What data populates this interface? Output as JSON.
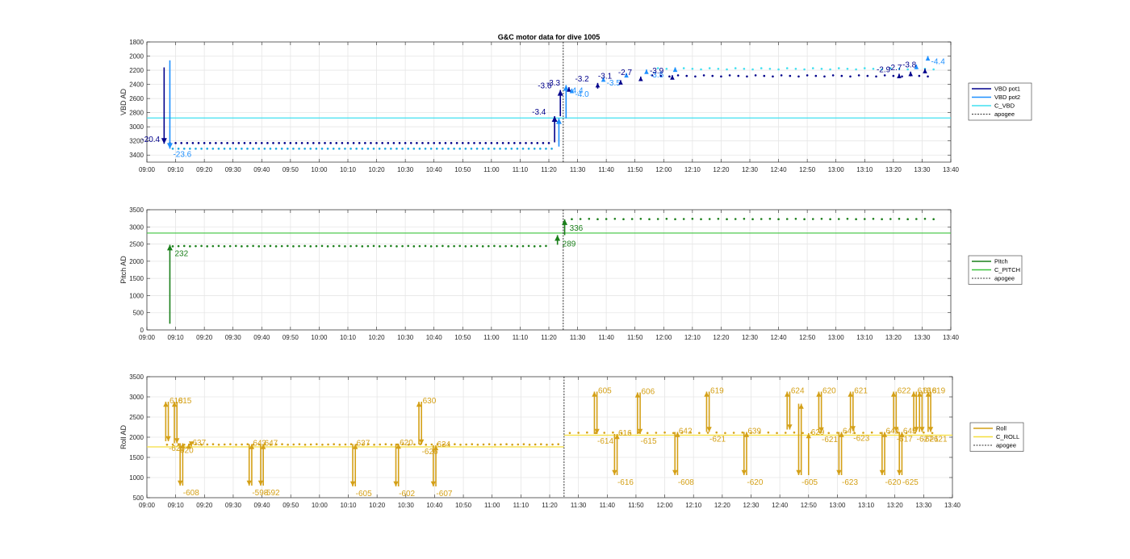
{
  "title": "G&C motor data for dive 1005",
  "colors": {
    "vbd_pot1": "#00008b",
    "vbd_pot2": "#1e90ff",
    "c_vbd": "#40e0f0",
    "vbd_dots1": "#00008b",
    "vbd_dots2": "#1ea7e0",
    "pitch": "#1a7f1a",
    "c_pitch": "#3cc43c",
    "roll": "#d4a017",
    "c_roll": "#f5de3c",
    "apogee": "#333333",
    "grid": "#e6e6e6",
    "axis": "#262626"
  },
  "chart_data": [
    {
      "type": "line",
      "name": "vbd",
      "ylabel": "VBD AD",
      "xlim": [
        "09:00",
        "13:40"
      ],
      "ylim": [
        1800,
        3500
      ],
      "y_reversed": true,
      "xticks": [
        "09:00",
        "09:10",
        "09:20",
        "09:30",
        "09:40",
        "09:50",
        "10:00",
        "10:10",
        "10:20",
        "10:30",
        "10:40",
        "10:50",
        "11:00",
        "11:10",
        "11:20",
        "11:30",
        "11:40",
        "11:50",
        "12:00",
        "12:10",
        "12:20",
        "12:30",
        "12:40",
        "12:50",
        "13:00",
        "13:10",
        "13:20",
        "13:30",
        "13:40"
      ],
      "yticks": [
        "1800",
        "2000",
        "2200",
        "2400",
        "2600",
        "2800",
        "3000",
        "3200",
        "3400"
      ],
      "grid": true,
      "apogee_x": "11:25",
      "hlines": [
        {
          "series": "C_VBD",
          "y": 2875
        }
      ],
      "legend": [
        "VBD pot1",
        "VBD pot2",
        "C_VBD",
        "apogee"
      ],
      "legend_placement": "outside-right",
      "arrows": [
        {
          "x": "09:06",
          "y1": 2160,
          "y2": 3240,
          "series": "pot1",
          "label": "-20.4"
        },
        {
          "x": "09:08",
          "y1": 2060,
          "y2": 3310,
          "series": "pot2",
          "label": "-23.6"
        },
        {
          "x": "11:22",
          "y1": 3220,
          "y2": 2850,
          "series": "pot1",
          "label": "-3.4"
        },
        {
          "x": "11:23.5",
          "y1": 3280,
          "y2": 2880,
          "series": "pot2",
          "label": ""
        },
        {
          "x": "11:24",
          "y1": 2850,
          "y2": 2480,
          "series": "pot1",
          "label": "-3.6"
        },
        {
          "x": "11:26",
          "y1": 2880,
          "y2": 2410,
          "series": "pot2",
          "label": "-4.4"
        },
        {
          "x": "11:27",
          "y1": 2460,
          "y2": 2440,
          "series": "pot1",
          "label": "-3.3"
        },
        {
          "x": "11:28",
          "y1": 2500,
          "y2": 2460,
          "series": "pot2",
          "label": "-4.0"
        },
        {
          "x": "11:37",
          "y1": 2460,
          "y2": 2380,
          "series": "pot1",
          "label": "-3.2"
        },
        {
          "x": "11:39",
          "y1": 2360,
          "y2": 2300,
          "series": "pot2",
          "label": "-3.5"
        },
        {
          "x": "11:45",
          "y1": 2390,
          "y2": 2340,
          "series": "pot1",
          "label": "-3.1"
        },
        {
          "x": "11:47",
          "y1": 2290,
          "y2": 2240,
          "series": "pot2",
          "label": ""
        },
        {
          "x": "11:52",
          "y1": 2340,
          "y2": 2290,
          "series": "pot1",
          "label": "-2.7"
        },
        {
          "x": "11:54",
          "y1": 2240,
          "y2": 2190,
          "series": "pot2",
          "label": "-3.5"
        },
        {
          "x": "12:03",
          "y1": 2300,
          "y2": 2270,
          "series": "pot1",
          "label": "-3.9"
        },
        {
          "x": "12:04",
          "y1": 2200,
          "y2": 2160,
          "series": "pot2",
          "label": ""
        },
        {
          "x": "13:22",
          "y1": 2290,
          "y2": 2250,
          "series": "pot1",
          "label": "-2.9"
        },
        {
          "x": "13:26",
          "y1": 2260,
          "y2": 2220,
          "series": "pot1",
          "label": "-2.7"
        },
        {
          "x": "13:28",
          "y1": 2160,
          "y2": 2120,
          "series": "pot2",
          "label": ""
        },
        {
          "x": "13:31",
          "y1": 2220,
          "y2": 2180,
          "series": "pot1",
          "label": "-3.8"
        },
        {
          "x": "13:32",
          "y1": 2060,
          "y2": 2000,
          "series": "pot2",
          "label": "-4.4"
        }
      ],
      "dots1_before": {
        "start": "09:08",
        "end": "11:20",
        "step_min": 2,
        "y": 3230
      },
      "dots2_before": {
        "start": "09:09",
        "end": "11:22",
        "step_min": 2,
        "y": 3310
      },
      "dots1_after": {
        "start": "11:56",
        "end": "13:34",
        "step_min": 3,
        "y": 2280
      },
      "dots2_after": {
        "start": "11:58",
        "end": "13:34",
        "step_min": 3,
        "y": 2180
      }
    },
    {
      "type": "line",
      "name": "pitch",
      "ylabel": "Pitch AD",
      "xlim": [
        "09:00",
        "13:40"
      ],
      "ylim": [
        0,
        3500
      ],
      "xticks": [
        "09:00",
        "09:10",
        "09:20",
        "09:30",
        "09:40",
        "09:50",
        "10:00",
        "10:10",
        "10:20",
        "10:30",
        "10:40",
        "10:50",
        "11:00",
        "11:10",
        "11:20",
        "11:30",
        "11:40",
        "11:50",
        "12:00",
        "12:10",
        "12:20",
        "12:30",
        "12:40",
        "12:50",
        "13:00",
        "13:10",
        "13:20",
        "13:30",
        "13:40"
      ],
      "yticks": [
        "0",
        "500",
        "1000",
        "1500",
        "2000",
        "2500",
        "3000",
        "3500"
      ],
      "grid": true,
      "apogee_x": "11:25",
      "hlines": [
        {
          "series": "C_PITCH",
          "y": 2820
        }
      ],
      "legend": [
        "Pitch",
        "C_PITCH",
        "apogee"
      ],
      "legend_placement": "outside-right",
      "arrows": [
        {
          "x": "09:08",
          "y1": 180,
          "y2": 2480,
          "label": "232"
        },
        {
          "x": "11:23",
          "y1": 2480,
          "y2": 2760,
          "label": "289"
        },
        {
          "x": "11:25.5",
          "y1": 2760,
          "y2": 3220,
          "label": "336"
        }
      ],
      "dots_before": {
        "start": "09:09",
        "end": "11:20",
        "step_min": 2,
        "y": 2440
      },
      "dots_after": {
        "start": "11:28",
        "end": "13:34",
        "step_min": 3,
        "y": 3230
      }
    },
    {
      "type": "line",
      "name": "roll",
      "ylabel": "Roll AD",
      "xlim": [
        "09:00",
        "13:40"
      ],
      "ylim": [
        500,
        3500
      ],
      "xticks": [
        "09:00",
        "09:10",
        "09:20",
        "09:30",
        "09:40",
        "09:50",
        "10:00",
        "10:10",
        "10:20",
        "10:30",
        "10:40",
        "10:50",
        "11:00",
        "11:10",
        "11:20",
        "11:30",
        "11:40",
        "11:50",
        "12:00",
        "12:10",
        "12:20",
        "12:30",
        "12:40",
        "12:50",
        "13:00",
        "13:10",
        "13:20",
        "13:30",
        "13:40"
      ],
      "yticks": [
        "500",
        "1000",
        "1500",
        "2000",
        "2500",
        "3000",
        "3500"
      ],
      "grid": true,
      "apogee_x": "11:25",
      "hlines": [
        {
          "series": "C_ROLL",
          "x1": "09:00",
          "x2": "11:25",
          "y": 1760
        },
        {
          "series": "C_ROLL",
          "x1": "11:25",
          "x2": "13:40",
          "y": 2050
        }
      ],
      "legend": [
        "Roll",
        "C_ROLL",
        "apogee"
      ],
      "legend_placement": "outside-right",
      "pairs": [
        {
          "x": "09:07",
          "lo": 1900,
          "hi": 2880,
          "up_label": "618",
          "dn_label": "-623"
        },
        {
          "x": "09:10",
          "lo": 1850,
          "hi": 2880,
          "up_label": "615",
          "dn_label": "-620"
        },
        {
          "x": "09:12",
          "lo": 800,
          "hi": 1850,
          "up_label": "",
          "dn_label": "-608",
          "down_first": true
        },
        {
          "x": "09:15",
          "lo": 1770,
          "hi": 1840,
          "up_label": "637",
          "dn_label": ""
        },
        {
          "x": "09:36",
          "lo": 800,
          "hi": 1830,
          "up_label": "643",
          "dn_label": "-598",
          "down_first": true
        },
        {
          "x": "09:40",
          "lo": 800,
          "hi": 1830,
          "up_label": "647",
          "dn_label": "-592",
          "down_first": true
        },
        {
          "x": "10:12",
          "lo": 780,
          "hi": 1830,
          "up_label": "637",
          "dn_label": "-605",
          "down_first": true
        },
        {
          "x": "10:27",
          "lo": 780,
          "hi": 1840,
          "up_label": "620",
          "dn_label": "-602",
          "down_first": true
        },
        {
          "x": "10:35",
          "lo": 1820,
          "hi": 2880,
          "up_label": "630",
          "dn_label": "-626"
        },
        {
          "x": "10:40",
          "lo": 780,
          "hi": 1800,
          "up_label": "634",
          "dn_label": "-607",
          "down_first": true
        },
        {
          "x": "11:36",
          "lo": 2080,
          "hi": 3130,
          "up_label": "605",
          "dn_label": "-614"
        },
        {
          "x": "11:43",
          "lo": 1060,
          "hi": 2080,
          "up_label": "616",
          "dn_label": "-616",
          "down_first": true
        },
        {
          "x": "11:51",
          "lo": 2080,
          "hi": 3110,
          "up_label": "606",
          "dn_label": "-615"
        },
        {
          "x": "12:04",
          "lo": 1060,
          "hi": 2130,
          "up_label": "642",
          "dn_label": "-608",
          "down_first": true
        },
        {
          "x": "12:15",
          "lo": 2130,
          "hi": 3130,
          "up_label": "619",
          "dn_label": "-621"
        },
        {
          "x": "12:28",
          "lo": 1060,
          "hi": 2130,
          "up_label": "639",
          "dn_label": "-620",
          "down_first": true
        },
        {
          "x": "12:43",
          "lo": 2190,
          "hi": 3130,
          "up_label": "624",
          "dn_label": ""
        },
        {
          "x": "12:47",
          "lo": 1060,
          "hi": 2830,
          "up_label": "",
          "dn_label": "-605",
          "down_first": true
        },
        {
          "x": "12:50",
          "lo": 1060,
          "hi": 2100,
          "up_label": "629",
          "dn_label": "",
          "up_only": true
        },
        {
          "x": "12:54",
          "lo": 2120,
          "hi": 3130,
          "up_label": "620",
          "dn_label": "-621"
        },
        {
          "x": "13:01",
          "lo": 1060,
          "hi": 2130,
          "up_label": "641",
          "dn_label": "-623",
          "down_first": true
        },
        {
          "x": "13:05",
          "lo": 2150,
          "hi": 3130,
          "up_label": "621",
          "dn_label": "-623"
        },
        {
          "x": "13:16",
          "lo": 1060,
          "hi": 2130,
          "up_label": "642",
          "dn_label": "-620",
          "down_first": true
        },
        {
          "x": "13:20",
          "lo": 2130,
          "hi": 3130,
          "up_label": "622",
          "dn_label": "-617"
        },
        {
          "x": "13:22",
          "lo": 1060,
          "hi": 2130,
          "up_label": "645",
          "dn_label": "-625",
          "down_first": true
        },
        {
          "x": "13:27",
          "lo": 2130,
          "hi": 3130,
          "up_label": "618",
          "dn_label": "-627"
        },
        {
          "x": "13:29",
          "lo": 2130,
          "hi": 3130,
          "up_label": "618",
          "dn_label": "-621"
        },
        {
          "x": "13:32",
          "lo": 2130,
          "hi": 3130,
          "up_label": "619",
          "dn_label": "-621"
        }
      ],
      "dots_before": {
        "start": "09:07",
        "end": "11:24",
        "step_min": 2,
        "y": 1820
      },
      "dots_after": {
        "start": "11:27",
        "end": "13:34",
        "step_min": 3,
        "y": 2110
      }
    }
  ]
}
